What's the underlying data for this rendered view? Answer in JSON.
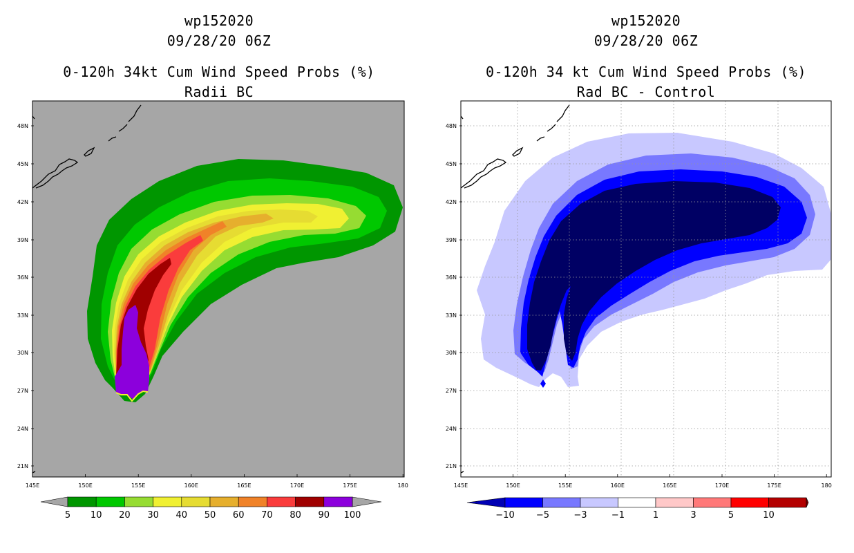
{
  "left_panel": {
    "title_lines": [
      "wp152020",
      "09/28/20 06Z",
      "0-120h 34kt Cum Wind Speed Probs (%)",
      "Radii BC"
    ],
    "lat_labels": [
      "48N",
      "45N",
      "42N",
      "39N",
      "36N",
      "33N",
      "30N",
      "27N",
      "24N",
      "21N"
    ],
    "lon_labels": [
      "145E",
      "150E",
      "155E",
      "160E",
      "165E",
      "170E",
      "175E",
      "180"
    ],
    "colorbar": {
      "labels": [
        "5",
        "10",
        "20",
        "30",
        "40",
        "50",
        "60",
        "70",
        "80",
        "90",
        "100"
      ],
      "colors": [
        "#009600",
        "#00c800",
        "#96dc32",
        "#f0f032",
        "#e6dc32",
        "#e6af2d",
        "#f08228",
        "#fa3c3c",
        "#a00000",
        "#8c00dc"
      ]
    },
    "background_color": "#a6a6a6"
  },
  "right_panel": {
    "title_lines": [
      "wp152020",
      "09/28/20 06Z",
      "0-120h 34 kt Cum Wind Speed Probs (%)",
      "Rad BC - Control"
    ],
    "lat_labels": [
      "48N",
      "45N",
      "42N",
      "39N",
      "36N",
      "33N",
      "30N",
      "27N",
      "24N",
      "21N"
    ],
    "lon_labels": [
      "145E",
      "150E",
      "155E",
      "160E",
      "165E",
      "170E",
      "175E",
      "180"
    ],
    "colorbar": {
      "labels": [
        "−10",
        "−5",
        "−3",
        "−1",
        "1",
        "3",
        "5",
        "10"
      ],
      "colors": [
        "#0000b4",
        "#0000ff",
        "#7878ff",
        "#c8c8ff",
        "#ffffff",
        "#ffc8c8",
        "#ff7878",
        "#ff0000",
        "#b40000",
        "#780000"
      ]
    }
  }
}
